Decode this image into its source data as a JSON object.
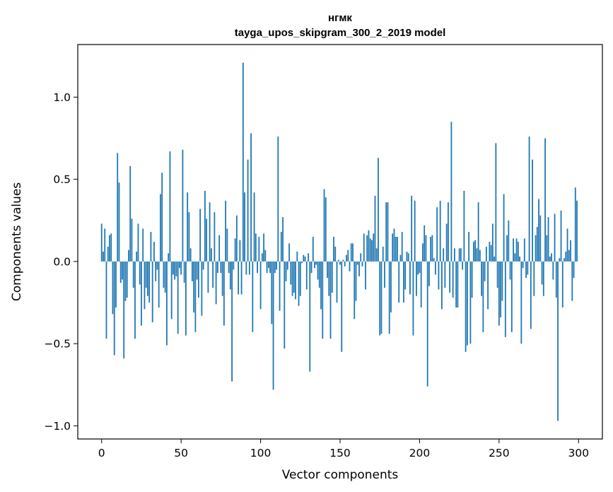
{
  "chart_data": {
    "type": "bar",
    "title": "нгмк",
    "subtitle": "tayga_upos_skipgram_300_2_2019 model",
    "xlabel": "Vector components",
    "ylabel": "Components values",
    "xlim": [
      -15,
      315
    ],
    "ylim": [
      -1.08,
      1.32
    ],
    "xticks": [
      0,
      50,
      100,
      150,
      200,
      250,
      300
    ],
    "yticks": [
      -1.0,
      -0.5,
      0.0,
      0.5,
      1.0
    ],
    "xtick_labels": [
      "0",
      "50",
      "100",
      "150",
      "200",
      "250",
      "300"
    ],
    "ytick_labels": [
      "−1.0",
      "−0.5",
      "0.0",
      "0.5",
      "1.0"
    ],
    "bar_color": "#1f77b4",
    "grid": false,
    "x_start": 0,
    "values": [
      0.23,
      0.06,
      0.2,
      -0.47,
      0.09,
      0.16,
      0.17,
      -0.32,
      -0.57,
      -0.28,
      0.66,
      0.48,
      -0.13,
      -0.11,
      -0.59,
      -0.24,
      -0.22,
      0.07,
      0.58,
      0.26,
      -0.16,
      -0.47,
      0.06,
      0.23,
      -0.14,
      -0.39,
      0.2,
      -0.29,
      -0.16,
      -0.21,
      -0.25,
      0.18,
      -0.37,
      0.12,
      -0.12,
      -0.05,
      -0.28,
      0.41,
      0.54,
      -0.16,
      -0.19,
      -0.51,
      0.05,
      0.67,
      -0.35,
      -0.08,
      -0.11,
      -0.09,
      -0.44,
      -0.04,
      -0.08,
      0.68,
      -0.13,
      -0.45,
      0.42,
      0.3,
      0.08,
      -0.12,
      -0.31,
      -0.43,
      -0.11,
      -0.22,
      0.32,
      -0.33,
      -0.05,
      0.43,
      0.26,
      -0.19,
      0.36,
      0.08,
      -0.16,
      0.3,
      -0.26,
      -0.07,
      0.16,
      -0.07,
      -0.21,
      -0.39,
      0.37,
      0.2,
      -0.07,
      -0.17,
      -0.73,
      -0.05,
      0.14,
      0.28,
      -0.2,
      0.13,
      -0.2,
      1.21,
      0.42,
      -0.08,
      0.62,
      -0.08,
      0.78,
      -0.43,
      0.42,
      0.17,
      -0.07,
      0.15,
      -0.29,
      0.05,
      0.17,
      0.07,
      -0.07,
      -0.04,
      -0.07,
      -0.38,
      -0.78,
      -0.07,
      -0.05,
      0.76,
      -0.3,
      0.18,
      0.27,
      -0.53,
      -0.12,
      -0.05,
      0.11,
      -0.14,
      -0.21,
      -0.19,
      -0.23,
      0.06,
      -0.27,
      -0.21,
      -0.01,
      0.04,
      0.03,
      -0.17,
      0.05,
      -0.67,
      -0.07,
      0.15,
      -0.04,
      -0.02,
      -0.11,
      -0.16,
      -0.29,
      -0.47,
      0.44,
      0.39,
      -0.1,
      -0.21,
      -0.47,
      -0.19,
      0.15,
      0.09,
      -0.25,
      0.01,
      -0.02,
      -0.55,
      0.01,
      -0.03,
      0.04,
      0.07,
      -0.06,
      0.11,
      0.11,
      -0.35,
      -0.24,
      -0.02,
      -0.09,
      0.05,
      -0.03,
      0.17,
      -0.17,
      0.16,
      0.19,
      0.14,
      0.13,
      0.17,
      0.4,
      0.08,
      0.63,
      -0.45,
      -0.44,
      0.09,
      -0.16,
      0.36,
      0.36,
      -0.44,
      -0.31,
      0.17,
      0.2,
      0.15,
      0.15,
      -0.25,
      0.04,
      0.18,
      -0.25,
      -0.17,
      0.06,
      0.05,
      -0.2,
      0.4,
      -0.45,
      0.37,
      -0.21,
      -0.08,
      -0.07,
      -0.28,
      0.11,
      0.22,
      0.16,
      -0.76,
      -0.15,
      0.15,
      0.16,
      0.02,
      -0.08,
      0.33,
      -0.17,
      0.37,
      -0.29,
      0.08,
      -0.16,
      0.23,
      0.36,
      -0.19,
      0.85,
      -0.22,
      0.08,
      -0.28,
      -0.28,
      0.08,
      0.08,
      -0.05,
      0.43,
      -0.55,
      -0.51,
      0.18,
      -0.5,
      -0.22,
      0.12,
      0.13,
      0.08,
      0.36,
      0.07,
      -0.21,
      -0.43,
      -0.12,
      0.09,
      -0.29,
      0.12,
      0.1,
      0.23,
      0.03,
      0.72,
      -0.16,
      -0.39,
      -0.34,
      -0.24,
      0.41,
      -0.46,
      0.16,
      0.25,
      -0.11,
      -0.43,
      0.14,
      0.05,
      0.14,
      0.12,
      0.03,
      -0.5,
      -0.04,
      0.14,
      -0.1,
      -0.08,
      0.76,
      -0.41,
      0.62,
      -0.21,
      0.16,
      0.21,
      0.38,
      0.28,
      -0.14,
      -0.21,
      0.75,
      0.16,
      0.27,
      0.03,
      0.05,
      -0.11,
      0.29,
      -0.22,
      -0.97,
      0.02,
      0.31,
      -0.28,
      0.02,
      0.06,
      0.2,
      0.07,
      0.13,
      -0.24,
      -0.1,
      0.45,
      0.37
    ]
  }
}
